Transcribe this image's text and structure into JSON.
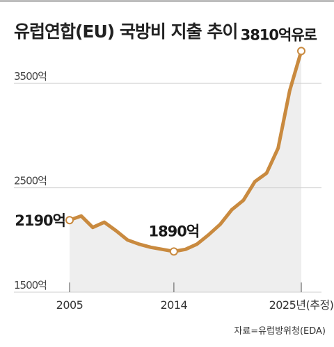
{
  "chart_data": {
    "type": "line",
    "title": "유럽연합(EU) 국방비 지출 추이",
    "source": "자료=유럽방위청(EDA)",
    "x": [
      2005,
      2006,
      2007,
      2008,
      2009,
      2010,
      2011,
      2012,
      2013,
      2014,
      2015,
      2016,
      2017,
      2018,
      2019,
      2020,
      2021,
      2022,
      2023,
      2024,
      2025
    ],
    "values": [
      2190,
      2230,
      2120,
      2170,
      2090,
      2000,
      1960,
      1930,
      1910,
      1890,
      1910,
      1960,
      2050,
      2150,
      2290,
      2380,
      2560,
      2640,
      2880,
      3430,
      3810
    ],
    "ylim": [
      1500,
      3900
    ],
    "yticks": [
      {
        "value": 1500,
        "label": "1500억"
      },
      {
        "value": 2500,
        "label": "2500억"
      },
      {
        "value": 3500,
        "label": "3500억"
      }
    ],
    "xticks": [
      {
        "value": 2005,
        "label": "2005"
      },
      {
        "value": 2014,
        "label": "2014"
      },
      {
        "value": 2025,
        "label": "2025년(추정)"
      }
    ],
    "highlights": [
      {
        "index": 0,
        "label": "2190억"
      },
      {
        "index": 9,
        "label": "1890억"
      },
      {
        "index": 20,
        "label": "3810억유로"
      }
    ],
    "grid": true,
    "colors": {
      "line": "#c98a3f",
      "area": "#eeeeee",
      "grid": "#cfcfcf",
      "axis": "#888888"
    }
  }
}
